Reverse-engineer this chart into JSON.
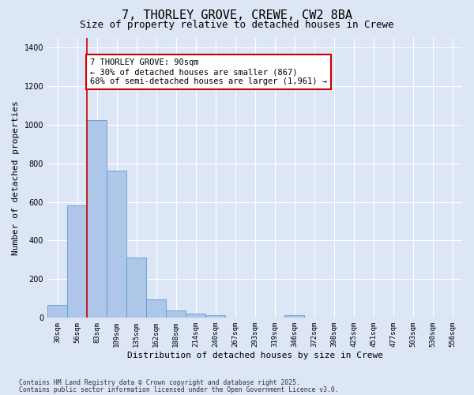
{
  "title_line1": "7, THORLEY GROVE, CREWE, CW2 8BA",
  "title_line2": "Size of property relative to detached houses in Crewe",
  "xlabel": "Distribution of detached houses by size in Crewe",
  "ylabel": "Number of detached properties",
  "bar_color": "#aec6e8",
  "bar_edge_color": "#5b9bd5",
  "background_color": "#dce6f5",
  "grid_color": "#ffffff",
  "categories": [
    "30sqm",
    "56sqm",
    "83sqm",
    "109sqm",
    "135sqm",
    "162sqm",
    "188sqm",
    "214sqm",
    "240sqm",
    "267sqm",
    "293sqm",
    "319sqm",
    "346sqm",
    "372sqm",
    "398sqm",
    "425sqm",
    "451sqm",
    "477sqm",
    "503sqm",
    "530sqm",
    "556sqm"
  ],
  "values": [
    68,
    580,
    1022,
    760,
    310,
    95,
    38,
    22,
    12,
    0,
    0,
    0,
    15,
    0,
    0,
    0,
    0,
    0,
    0,
    0,
    0
  ],
  "ylim": [
    0,
    1450
  ],
  "yticks": [
    0,
    200,
    400,
    600,
    800,
    1000,
    1200,
    1400
  ],
  "red_line_index": 2,
  "annotation_text": "7 THORLEY GROVE: 90sqm\n← 30% of detached houses are smaller (867)\n68% of semi-detached houses are larger (1,961) →",
  "annotation_box_color": "#ffffff",
  "annotation_box_edge_color": "#cc0000",
  "red_line_color": "#cc0000",
  "footnote1": "Contains HM Land Registry data © Crown copyright and database right 2025.",
  "footnote2": "Contains public sector information licensed under the Open Government Licence v3.0.",
  "title_fontsize": 11,
  "subtitle_fontsize": 9,
  "tick_fontsize": 6.5,
  "ylabel_fontsize": 8,
  "xlabel_fontsize": 8,
  "annotation_fontsize": 7.5
}
